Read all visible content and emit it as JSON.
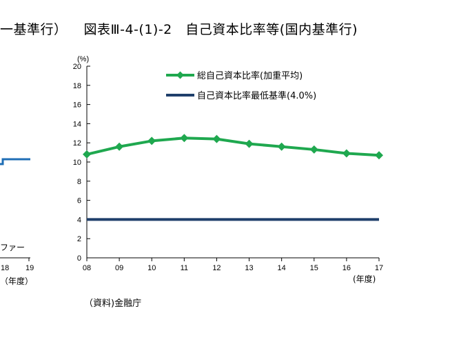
{
  "titles": {
    "left_fragment": "一基準行）",
    "right": "図表Ⅲ-4-(1)-2　自己資本比率等(国内基準行)"
  },
  "left_chart_fragment": {
    "legend_fragment": "ファー",
    "x_ticks": [
      "18",
      "19"
    ],
    "xunit": "（年度）",
    "colors": {
      "series": "#1f6eb5"
    }
  },
  "source": "（資料)金融庁",
  "chart_data": {
    "type": "line",
    "title": "自己資本比率等(国内基準行)",
    "ylabel": "(%)",
    "xlabel": "(年度)",
    "categories": [
      "08",
      "09",
      "10",
      "11",
      "12",
      "13",
      "14",
      "15",
      "16",
      "17"
    ],
    "ylim": [
      0,
      20
    ],
    "yticks": [
      "0",
      "2",
      "4",
      "6",
      "8",
      "10",
      "12",
      "14",
      "16",
      "18",
      "20"
    ],
    "grid": false,
    "legend_position": "top-right",
    "series": [
      {
        "name": "総自己資本比率(加重平均)",
        "values": [
          10.8,
          11.6,
          12.2,
          12.5,
          12.4,
          11.9,
          11.6,
          11.3,
          10.9,
          10.7
        ],
        "color": "#1fa84f",
        "marker": "diamond"
      },
      {
        "name": "自己資本比率最低基準(4.0%)",
        "values": [
          4.0,
          4.0,
          4.0,
          4.0,
          4.0,
          4.0,
          4.0,
          4.0,
          4.0,
          4.0
        ],
        "color": "#1f3f6b",
        "marker": "none"
      }
    ]
  }
}
